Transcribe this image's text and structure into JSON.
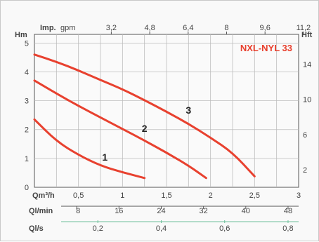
{
  "chart_data": {
    "type": "line",
    "title": "NXL-NYL 33",
    "colors": {
      "curve": "#e8412f",
      "title": "#e8412f",
      "axis": "#444444",
      "grid": "#bdbdbd",
      "accent_green": "#6dbf9a",
      "plot_bg": "#fafafa"
    },
    "top_axis": {
      "label_bold": "Imp.",
      "label_unit": "gpm",
      "ticks": [
        "3,2",
        "4,8",
        "6,4",
        "8",
        "9,6",
        "11,2"
      ],
      "tick_values": [
        3.2,
        4.8,
        6.4,
        8,
        9.6,
        11.2
      ]
    },
    "left_axis": {
      "label": "Hm",
      "ticks": [
        "0",
        "1",
        "2",
        "3",
        "4",
        "5"
      ],
      "tick_values": [
        0,
        1,
        2,
        3,
        4,
        5
      ],
      "ylim": [
        0,
        5.3
      ]
    },
    "right_axis": {
      "label": "Hft",
      "ticks": [
        "2",
        "6",
        "10",
        "14"
      ],
      "tick_values": [
        2,
        6,
        10,
        14
      ]
    },
    "bottom_axes": [
      {
        "label": "Qm³/h",
        "ticks": [
          "0,5",
          "1",
          "1,5",
          "2",
          "2,5",
          "3"
        ],
        "tick_values": [
          0.5,
          1,
          1.5,
          2,
          2.5,
          3
        ]
      },
      {
        "label": "Ql/min",
        "ticks": [
          "8",
          "16",
          "24",
          "32",
          "40",
          "48"
        ],
        "tick_values": [
          8,
          16,
          24,
          32,
          40,
          48
        ]
      },
      {
        "label": "Ql/s",
        "ticks": [
          "0,2",
          "0,4",
          "0,6",
          "0,8"
        ],
        "tick_values": [
          0.2,
          0.4,
          0.6,
          0.8
        ]
      }
    ],
    "xlim": [
      0,
      3
    ],
    "grid": true,
    "series": [
      {
        "name": "1",
        "x": [
          0,
          0.25,
          0.5,
          0.75,
          1.0,
          1.25
        ],
        "y": [
          2.35,
          1.6,
          1.12,
          0.75,
          0.52,
          0.32
        ]
      },
      {
        "name": "2",
        "x": [
          0,
          0.25,
          0.5,
          0.75,
          1.0,
          1.25,
          1.5,
          1.75,
          1.95
        ],
        "y": [
          3.7,
          3.25,
          2.82,
          2.42,
          2.02,
          1.62,
          1.2,
          0.75,
          0.32
        ]
      },
      {
        "name": "3",
        "x": [
          0,
          0.25,
          0.5,
          0.75,
          1.0,
          1.25,
          1.5,
          1.75,
          2.0,
          2.25,
          2.5
        ],
        "y": [
          4.6,
          4.35,
          4.05,
          3.72,
          3.4,
          3.02,
          2.62,
          2.2,
          1.72,
          1.2,
          0.38
        ]
      }
    ],
    "series_labels": [
      "1",
      "2",
      "3"
    ]
  }
}
